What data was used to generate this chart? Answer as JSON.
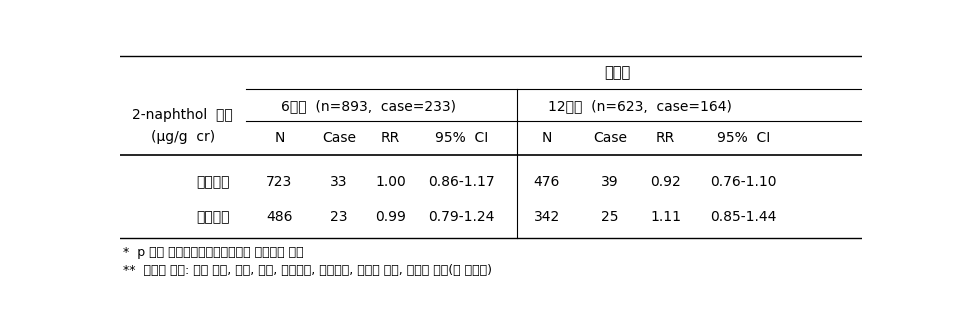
{
  "title_main": "아토피",
  "col_header_line1": "2-naphthol  농도",
  "col_header_line2": "(μg/g  cr)",
  "group1_header": "6개월  (n=893,  case=233)",
  "group2_header": "12개월  (n=623,  case=164)",
  "sub_headers": [
    "N",
    "Case",
    "RR",
    "95%  CI"
  ],
  "rows": [
    {
      "label": "임신초기",
      "g1": [
        "723",
        "33",
        "1.00",
        "0.86-1.17"
      ],
      "g2": [
        "476",
        "39",
        "0.92",
        "0.76-1.10"
      ]
    },
    {
      "label": "임신말기",
      "g1": [
        "486",
        "23",
        "0.99",
        "0.79-1.24"
      ],
      "g2": [
        "342",
        "25",
        "1.11",
        "0.85-1.44"
      ]
    }
  ],
  "footnote1": "*  p 값은 다중로지스틱회귀분석을 이용하여 구함",
  "footnote2": "**  보정된 변수: 산모 나이, 지역, 수입, 조산여부, 출생순서, 아기의 성별, 코티닌 농도(각 시기별)",
  "bg_color": "#ffffff",
  "text_color": "#000000",
  "line_color": "#000000",
  "font_size": 10,
  "footnote_font_size": 9
}
